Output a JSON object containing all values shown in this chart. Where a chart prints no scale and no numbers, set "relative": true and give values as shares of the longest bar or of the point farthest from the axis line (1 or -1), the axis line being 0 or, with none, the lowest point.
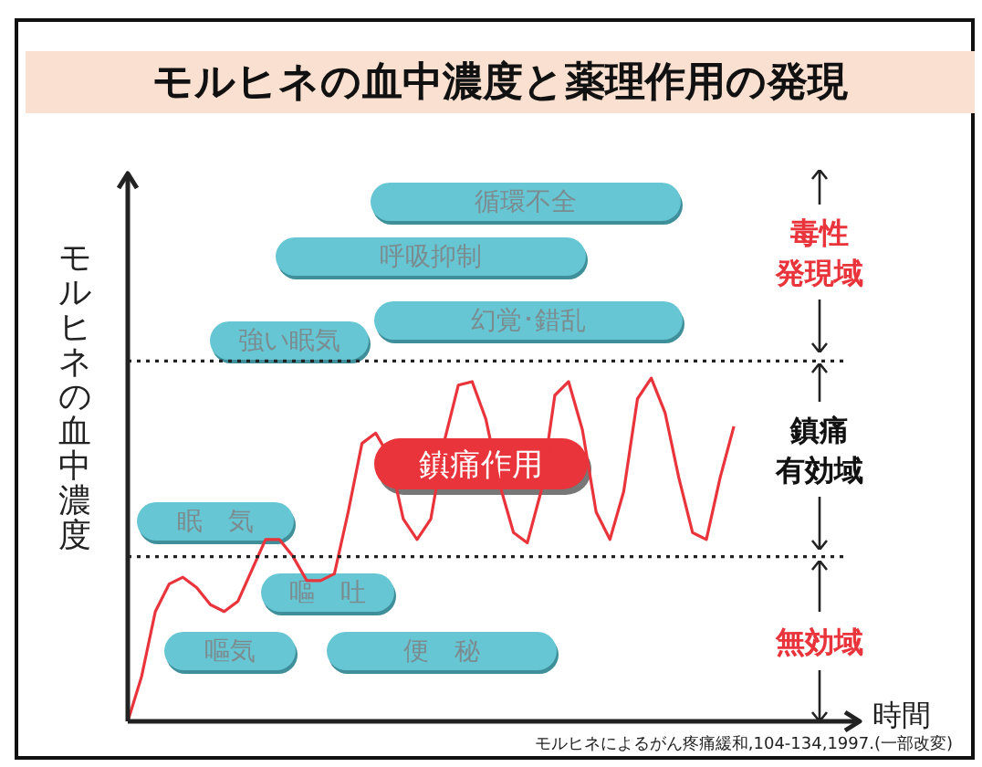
{
  "chart_data": {
    "type": "line",
    "relative": true,
    "title": "モルヒネの血中濃度と薬理作用の発現",
    "ylabel": "モルヒネの血中濃度",
    "xlabel": "時間",
    "categories": [
      null,
      null,
      null,
      null,
      null,
      null,
      null,
      null,
      null,
      null,
      null,
      null,
      null,
      null,
      null,
      null,
      null,
      null,
      null,
      null,
      null,
      null,
      null,
      null,
      null,
      null,
      null,
      null,
      null,
      null,
      null,
      null,
      null,
      null,
      null,
      null,
      null,
      null,
      null,
      null,
      null,
      null,
      null,
      null,
      null,
      null,
      null,
      null,
      null,
      null,
      null,
      null,
      null,
      null
    ],
    "series": [
      {
        "color": "#e8343a",
        "values": [
          0,
          0.13,
          0.32,
          0.4,
          0.42,
          0.39,
          0.34,
          0.32,
          0.35,
          0.44,
          0.53,
          0.53,
          0.48,
          0.41,
          0.41,
          0.43,
          0.61,
          0.81,
          0.84,
          0.77,
          0.59,
          0.53,
          0.59,
          0.82,
          0.98,
          0.99,
          0.88,
          0.69,
          0.55,
          0.52,
          0.67,
          0.95,
          0.99,
          0.85,
          0.61,
          0.53,
          0.67,
          0.94,
          1,
          0.9,
          0.71,
          0.55,
          0.53,
          0.71,
          0.86,
          null,
          null,
          null,
          null,
          null,
          null,
          null,
          null,
          null
        ]
      }
    ],
    "ref_lines": [
      {
        "axis": "y",
        "value": 1.05,
        "line_style": "dotted"
      },
      {
        "axis": "y",
        "value": 0.48,
        "line_style": "dotted"
      }
    ],
    "annotations": [
      "循環不全",
      "呼吸抑制",
      "幻覚･錯乱",
      "強い眠気",
      "鎮痛作用",
      "眠　気",
      "嘔　吐",
      "嘔気",
      "便　秘",
      "毒性",
      "発現域",
      "鎮痛",
      "有効域",
      "無効域",
      "モルヒネによるがん疼痛緩和,104-134,1997.(一部改変)"
    ]
  }
}
